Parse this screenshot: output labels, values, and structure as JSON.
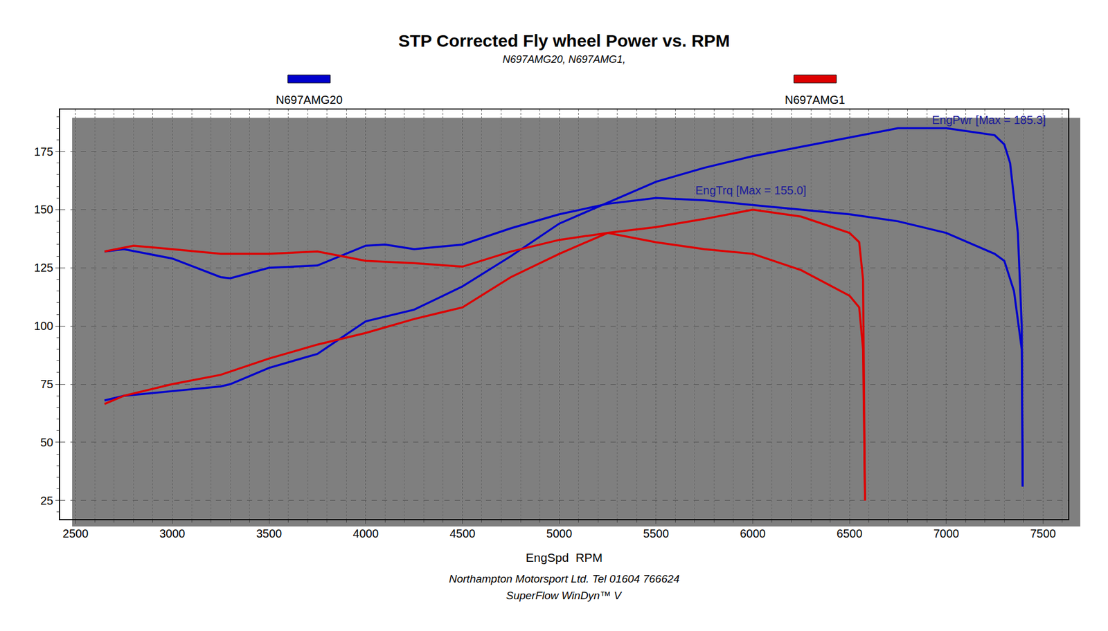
{
  "chart_data": {
    "type": "line",
    "title": "STP Corrected Fly wheel Power vs. RPM",
    "subtitle": "N697AMG20, N697AMG1,",
    "x_label": "EngSpd  RPM",
    "footer": [
      "Northampton Motorsport Ltd. Tel 01604 766624",
      "SuperFlow WinDyn™ V"
    ],
    "xlim": [
      2420,
      7630
    ],
    "xticks": [
      2500,
      3000,
      3500,
      4000,
      4500,
      5000,
      5500,
      6000,
      6500,
      7000,
      7500
    ],
    "ylim": [
      17,
      193
    ],
    "yticks": [
      25,
      50,
      75,
      100,
      125,
      150,
      175
    ],
    "grid": true,
    "legend": "top",
    "annotations": [
      {
        "text": "EngPwr [Max = 185.3]",
        "x": 7220,
        "y": 188.6
      },
      {
        "text": "EngTrq [Max = 155.0]",
        "x": 5990,
        "y": 158.4
      }
    ],
    "series": [
      {
        "name": "N697AMG20",
        "color": "#0000cc",
        "power_x": [
          2650,
          2750,
          3000,
          3250,
          3300,
          3500,
          3750,
          4000,
          4250,
          4500,
          4750,
          5000,
          5250,
          5500,
          5750,
          6000,
          6250,
          6500,
          6750,
          7000,
          7250,
          7300,
          7330,
          7370,
          7390,
          7395
        ],
        "power": [
          68,
          70,
          72,
          74,
          75,
          82,
          88,
          102,
          107,
          117,
          130,
          144,
          153,
          162,
          168,
          173,
          177,
          181,
          185,
          185,
          182,
          178,
          170,
          140,
          100,
          31
        ],
        "torque_x": [
          2650,
          2750,
          3000,
          3250,
          3300,
          3500,
          3750,
          4000,
          4100,
          4250,
          4500,
          4750,
          5000,
          5250,
          5500,
          5750,
          6000,
          6250,
          6500,
          6750,
          7000,
          7250,
          7300,
          7350,
          7390,
          7395
        ],
        "torque": [
          132,
          133,
          129,
          121,
          120.5,
          125,
          126,
          134.5,
          135,
          133,
          135,
          142,
          148,
          152.5,
          155,
          154,
          152,
          150,
          148,
          145,
          140,
          131,
          128,
          115,
          90,
          31
        ]
      },
      {
        "name": "N697AMG1",
        "color": "#dd0000",
        "power_x": [
          2650,
          2750,
          3000,
          3250,
          3500,
          3750,
          4000,
          4250,
          4500,
          4750,
          5000,
          5250,
          5500,
          5750,
          6000,
          6250,
          6500,
          6550,
          6570,
          6580
        ],
        "power": [
          66.5,
          70,
          75,
          79,
          86,
          92,
          97,
          103,
          108,
          121,
          131,
          140,
          142.5,
          146,
          150,
          147,
          140,
          136,
          120,
          25
        ],
        "torque_x": [
          2650,
          2800,
          3000,
          3250,
          3500,
          3750,
          4000,
          4250,
          4500,
          4750,
          5000,
          5250,
          5500,
          5750,
          6000,
          6250,
          6500,
          6550,
          6570,
          6580
        ],
        "torque": [
          132,
          134.5,
          133,
          131,
          131,
          132,
          128,
          127,
          125.5,
          132,
          137,
          140,
          136,
          133,
          131,
          124,
          113,
          108,
          90,
          25
        ]
      }
    ]
  }
}
